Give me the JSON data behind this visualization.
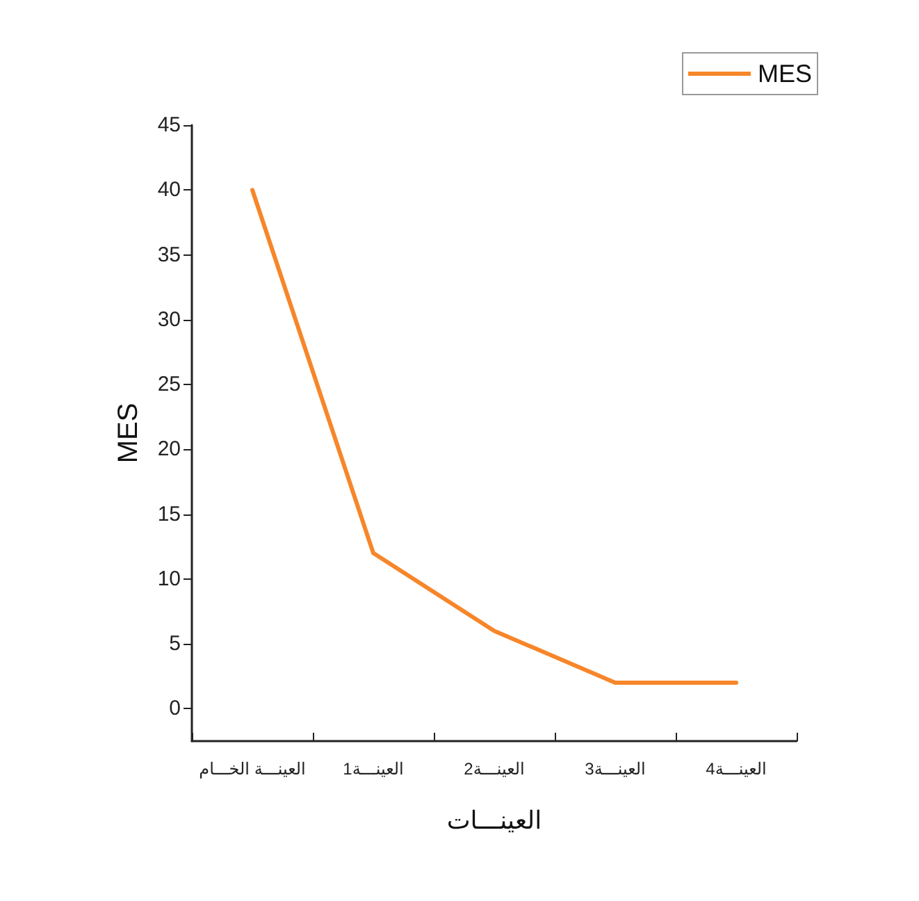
{
  "chart_data": {
    "type": "line",
    "xlabel": "العينـــات",
    "ylabel": "MES",
    "categories": [
      "العينـــة الخـــام",
      "العينـــة1",
      "العينـــة2",
      "العينـــة3",
      "العينـــة4"
    ],
    "series": [
      {
        "name": "MES",
        "color": "#f7862a",
        "values": [
          40,
          12,
          6,
          2,
          2
        ]
      }
    ],
    "ylim": [
      -2.5,
      45
    ],
    "yticks": [
      0,
      5,
      10,
      15,
      20,
      25,
      30,
      35,
      40,
      45
    ],
    "legend": "top right",
    "marker": "none",
    "line_style": "solid"
  }
}
